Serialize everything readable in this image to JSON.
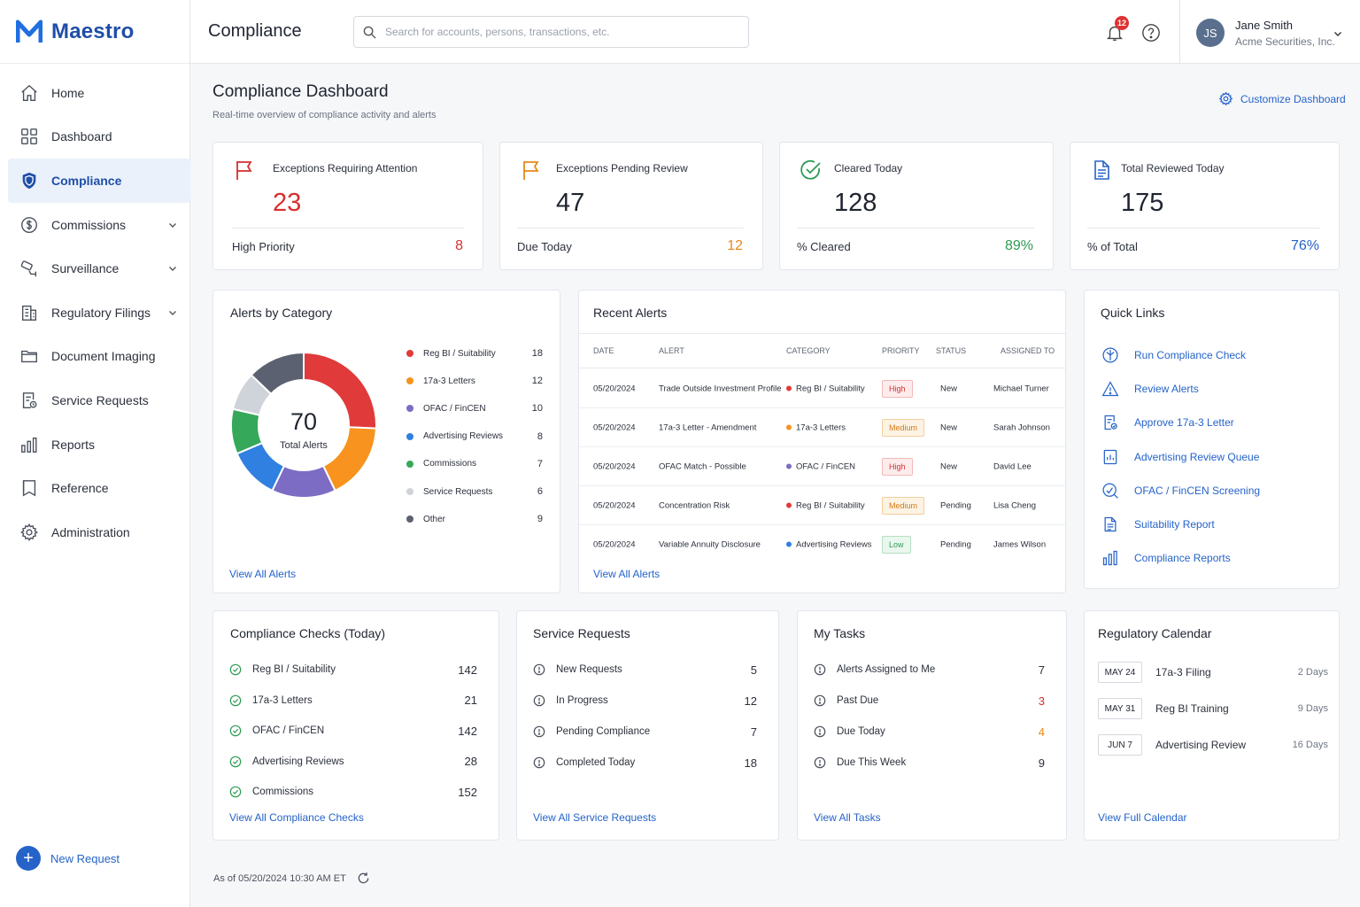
{
  "brand": {
    "name": "Maestro"
  },
  "nav": [
    {
      "label": "Home",
      "icon": "home-icon"
    },
    {
      "label": "Dashboard",
      "icon": "grid-icon"
    },
    {
      "label": "Compliance",
      "icon": "shield-icon",
      "active": true
    },
    {
      "label": "Commissions",
      "icon": "commissions-icon",
      "expandable": true
    },
    {
      "label": "Surveillance",
      "icon": "surveillance-icon",
      "expandable": true
    },
    {
      "label": "Regulatory Filings",
      "icon": "building-icon",
      "expandable": true
    },
    {
      "label": "Document Imaging",
      "icon": "folder-icon"
    },
    {
      "label": "Service Requests",
      "icon": "service-request-icon"
    },
    {
      "label": "Reports",
      "icon": "bar-chart-icon"
    },
    {
      "label": "Reference",
      "icon": "book-icon"
    },
    {
      "label": "Administration",
      "icon": "gear-icon"
    }
  ],
  "new_request": "New Request",
  "header": {
    "title": "Compliance",
    "search_placeholder": "Search for accounts, persons, transactions, etc.",
    "notification_count": "12",
    "user": {
      "initials": "JS",
      "name": "Jane Smith",
      "org": "Acme Securities, Inc."
    }
  },
  "page": {
    "title": "Compliance Dashboard",
    "subtitle": "Real-time overview of compliance activity and alerts",
    "customize": "Customize Dashboard"
  },
  "kpis": [
    {
      "label": "Exceptions Requiring Attention",
      "value": "23",
      "value_color": "#d62f2f",
      "sub_label": "High Priority",
      "sub_value": "8",
      "sub_color": "#d62f2f",
      "icon": "flag-icon",
      "icon_color": "#d62f2f"
    },
    {
      "label": "Exceptions Pending Review",
      "value": "47",
      "value_color": "#1f2430",
      "sub_label": "Due Today",
      "sub_value": "12",
      "sub_color": "#e8891a",
      "icon": "flag-icon",
      "icon_color": "#e8891a"
    },
    {
      "label": "Cleared Today",
      "value": "128",
      "value_color": "#1f2430",
      "sub_label": "% Cleared",
      "sub_value": "89%",
      "sub_color": "#2e9b53",
      "icon": "check-circle-icon",
      "icon_color": "#2e9b53"
    },
    {
      "label": "Total Reviewed Today",
      "value": "175",
      "value_color": "#1f2430",
      "sub_label": "% of Total",
      "sub_value": "76%",
      "sub_color": "#2563c9",
      "icon": "document-icon",
      "icon_color": "#2563c9"
    }
  ],
  "alerts_by_category": {
    "title": "Alerts by Category",
    "total": "70",
    "total_label": "Total Alerts",
    "view_all": "View All Alerts"
  },
  "chart_data": {
    "type": "pie",
    "categories": [
      "Reg BI / Suitability",
      "17a-3 Letters",
      "OFAC / FinCEN",
      "Advertising Reviews",
      "Commissions",
      "Service Requests",
      "Other"
    ],
    "values": [
      18,
      12,
      10,
      8,
      7,
      6,
      9
    ],
    "colors": [
      "#e03a3a",
      "#f7931e",
      "#7c6cc4",
      "#2f80e0",
      "#36a85a",
      "#cfd3da",
      "#5b6170"
    ],
    "center_value": 70,
    "center_label": "Total Alerts",
    "legend": "right"
  },
  "recent_alerts": {
    "title": "Recent Alerts",
    "columns": [
      "DATE",
      "ALERT",
      "CATEGORY",
      "PRIORITY",
      "STATUS",
      "ASSIGNED TO"
    ],
    "rows": [
      {
        "date": "05/20/2024",
        "alert": "Trade Outside Investment Profile",
        "category": "Reg BI / Suitability",
        "cat_color": "#e03a3a",
        "priority": "High",
        "level": "high",
        "status": "New",
        "assigned": "Michael Turner"
      },
      {
        "date": "05/20/2024",
        "alert": "17a-3 Letter - Amendment",
        "category": "17a-3 Letters",
        "cat_color": "#f7931e",
        "priority": "Medium",
        "level": "medium",
        "status": "New",
        "assigned": "Sarah Johnson"
      },
      {
        "date": "05/20/2024",
        "alert": "OFAC Match - Possible",
        "category": "OFAC / FinCEN",
        "cat_color": "#7c6cc4",
        "priority": "High",
        "level": "high",
        "status": "New",
        "assigned": "David Lee"
      },
      {
        "date": "05/20/2024",
        "alert": "Concentration Risk",
        "category": "Reg BI / Suitability",
        "cat_color": "#e03a3a",
        "priority": "Medium",
        "level": "medium",
        "status": "Pending",
        "assigned": "Lisa Cheng"
      },
      {
        "date": "05/20/2024",
        "alert": "Variable Annuity Disclosure",
        "category": "Advertising Reviews",
        "cat_color": "#2f80e0",
        "priority": "Low",
        "level": "low",
        "status": "Pending",
        "assigned": "James Wilson"
      }
    ],
    "view_all": "View All Alerts"
  },
  "quick_links": {
    "title": "Quick Links",
    "items": [
      {
        "label": "Run Compliance Check",
        "icon": "compliance-check-icon"
      },
      {
        "label": "Review Alerts",
        "icon": "warning-icon"
      },
      {
        "label": "Approve 17a-3 Letter",
        "icon": "letter-icon"
      },
      {
        "label": "Advertising Review Queue",
        "icon": "queue-icon"
      },
      {
        "label": "OFAC / FinCEN Screening",
        "icon": "screening-icon"
      },
      {
        "label": "Suitability Report",
        "icon": "report-icon"
      },
      {
        "label": "Compliance Reports",
        "icon": "bar-chart-icon"
      }
    ]
  },
  "compliance_checks": {
    "title": "Compliance Checks (Today)",
    "items": [
      {
        "label": "Reg BI / Suitability",
        "value": "142"
      },
      {
        "label": "17a-3 Letters",
        "value": "21"
      },
      {
        "label": "OFAC / FinCEN",
        "value": "142"
      },
      {
        "label": "Advertising Reviews",
        "value": "28"
      },
      {
        "label": "Commissions",
        "value": "152"
      }
    ],
    "view_all": "View All Compliance Checks"
  },
  "service_requests": {
    "title": "Service Requests",
    "items": [
      {
        "label": "New Requests",
        "value": "5"
      },
      {
        "label": "In Progress",
        "value": "12"
      },
      {
        "label": "Pending Compliance",
        "value": "7"
      },
      {
        "label": "Completed Today",
        "value": "18"
      }
    ],
    "view_all": "View All Service Requests"
  },
  "my_tasks": {
    "title": "My Tasks",
    "items": [
      {
        "label": "Alerts Assigned to Me",
        "value": "7",
        "color": "#2b303b"
      },
      {
        "label": "Past Due",
        "value": "3",
        "color": "#d62f2f"
      },
      {
        "label": "Due Today",
        "value": "4",
        "color": "#e8891a"
      },
      {
        "label": "Due This Week",
        "value": "9",
        "color": "#2b303b"
      }
    ],
    "view_all": "View All Tasks"
  },
  "regulatory_calendar": {
    "title": "Regulatory Calendar",
    "items": [
      {
        "date": "MAY 24",
        "label": "17a-3 Filing",
        "days": "2 Days"
      },
      {
        "date": "MAY 31",
        "label": "Reg BI Training",
        "days": "9 Days"
      },
      {
        "date": "JUN 7",
        "label": "Advertising Review",
        "days": "16 Days"
      }
    ],
    "view_all": "View Full Calendar"
  },
  "footer": {
    "timestamp": "As of 05/20/2024 10:30 AM ET"
  }
}
